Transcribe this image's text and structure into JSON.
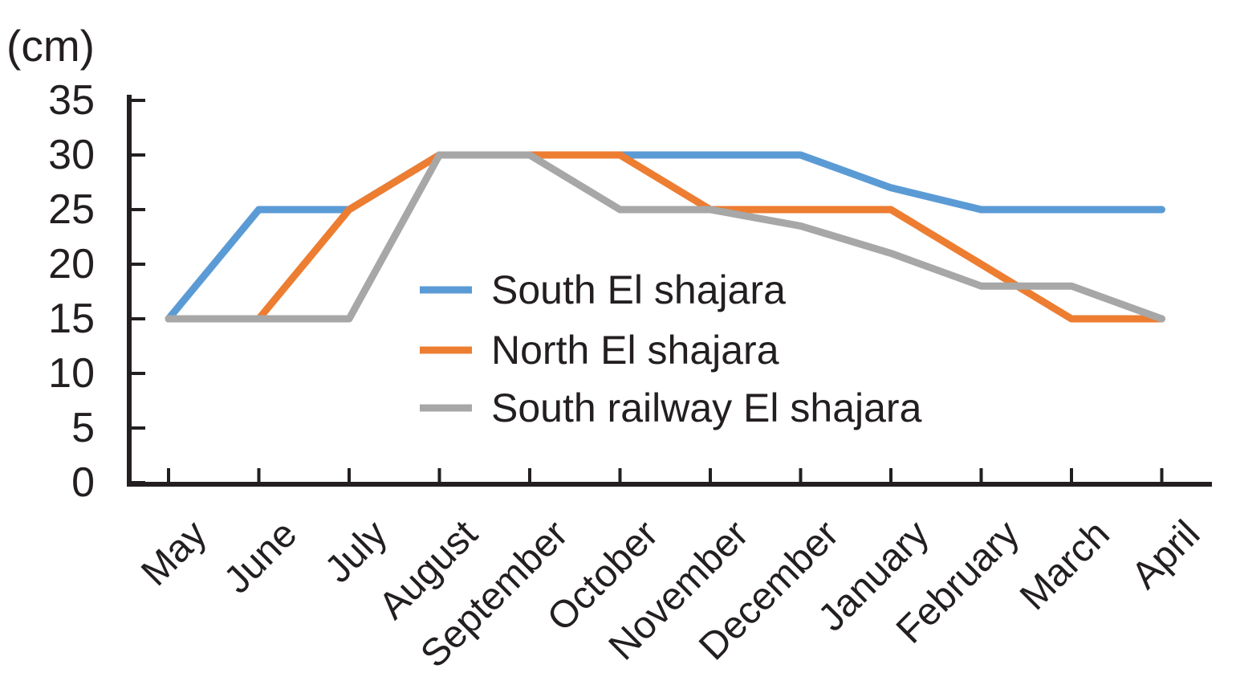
{
  "chart_data": {
    "type": "line",
    "title": "",
    "unit_label": "(cm)",
    "xlabel": "",
    "ylabel": "(cm)",
    "ylim": [
      0,
      35
    ],
    "yticks": [
      35,
      30,
      25,
      20,
      15,
      10,
      5,
      0
    ],
    "grid": false,
    "legend_position": "inside-center",
    "categories": [
      "May",
      "June",
      "July",
      "August",
      "September",
      "October",
      "November",
      "December",
      "January",
      "February",
      "March",
      "April"
    ],
    "series": [
      {
        "name": "South El shajara",
        "color": "#5B9BD5",
        "values": [
          15,
          25,
          25,
          30,
          30,
          30,
          30,
          30,
          27,
          25,
          25,
          25
        ]
      },
      {
        "name": "North El shajara",
        "color": "#ED7D31",
        "values": [
          15,
          15,
          25,
          30,
          30,
          30,
          25,
          25,
          25,
          20,
          15,
          15
        ]
      },
      {
        "name": "South railway El shajara",
        "color": "#A7A7A7",
        "values": [
          15,
          15,
          15,
          30,
          30,
          25,
          25,
          23.5,
          21,
          18,
          18,
          15
        ]
      }
    ],
    "axis_color": "#231F20",
    "text_color": "#231F20"
  }
}
